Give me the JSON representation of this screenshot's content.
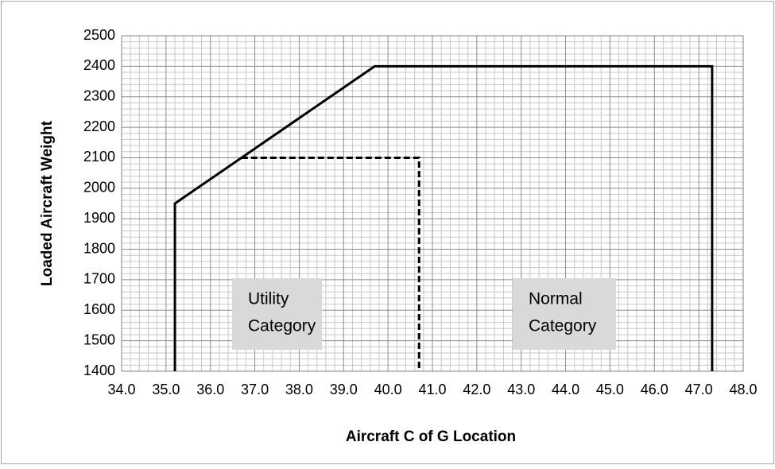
{
  "chart_data": {
    "type": "line",
    "x_label": "Aircraft C of G Location",
    "y_label": "Loaded Aircraft Weight",
    "xlim": [
      34.0,
      48.0
    ],
    "ylim": [
      1400,
      2500
    ],
    "xticks": [
      {
        "value": 34,
        "label": "34.0"
      },
      {
        "value": 35,
        "label": "35.0"
      },
      {
        "value": 36,
        "label": "36.0"
      },
      {
        "value": 37,
        "label": "37.0"
      },
      {
        "value": 38,
        "label": "38.0"
      },
      {
        "value": 39,
        "label": "39.0"
      },
      {
        "value": 40,
        "label": "40.0"
      },
      {
        "value": 41,
        "label": "41.0"
      },
      {
        "value": 42,
        "label": "42.0"
      },
      {
        "value": 43,
        "label": "43.0"
      },
      {
        "value": 44,
        "label": "44.0"
      },
      {
        "value": 45,
        "label": "45.0"
      },
      {
        "value": 46,
        "label": "46.0"
      },
      {
        "value": 47,
        "label": "47.0"
      },
      {
        "value": 48,
        "label": "48.0"
      }
    ],
    "yticks": [
      1400,
      1500,
      1600,
      1700,
      1800,
      1900,
      2000,
      2100,
      2200,
      2300,
      2400,
      2500
    ],
    "grid": true,
    "minor_grid": true,
    "series": [
      {
        "color": "#000000",
        "dashed": false,
        "x": [
          35.2,
          35.2,
          39.7,
          47.3,
          47.3
        ],
        "values": [
          1400,
          1950,
          2400,
          2400,
          1400
        ]
      },
      {
        "color": "#000000",
        "dashed": true,
        "x": [
          36.7,
          40.7,
          40.7
        ],
        "values": [
          2100,
          2100,
          1400
        ]
      }
    ],
    "annotations": [
      {
        "lines": [
          "Utility",
          "Category"
        ]
      },
      {
        "lines": [
          "Normal",
          "Category"
        ]
      }
    ]
  }
}
